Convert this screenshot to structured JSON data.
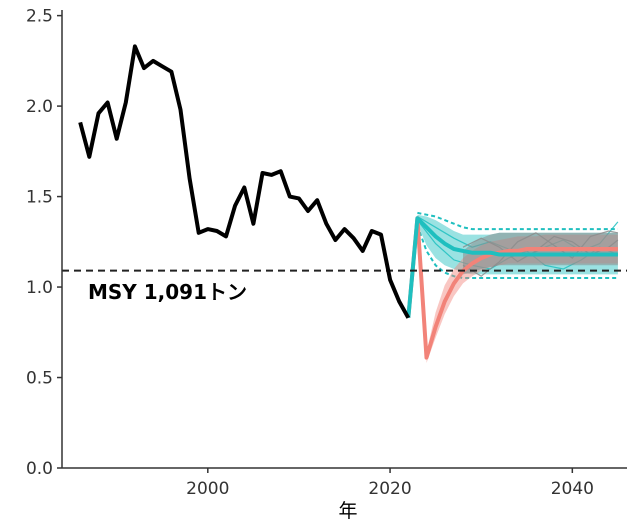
{
  "chart_data": {
    "type": "line",
    "xlabel": "年",
    "ylabel": "",
    "xlim": [
      1984,
      2046
    ],
    "ylim": [
      0,
      2.52
    ],
    "xticks": [
      2000,
      2020,
      2040
    ],
    "yticks": [
      0.0,
      0.5,
      1.0,
      1.5,
      2.0,
      2.5
    ],
    "ytick_labels": [
      "0.0",
      "0.5",
      "1.0",
      "1.5",
      "2.0",
      "2.5"
    ],
    "grid": false,
    "colors": {
      "history": "#000000",
      "teal": "#1fbfbf",
      "teal_band": "#1fbfbf",
      "salmon": "#f28379",
      "grey": "#8c8c8c",
      "msy_line": "#222222"
    },
    "reference_line": {
      "y": 1.091,
      "label": "MSY 1,091トン",
      "style": "dashed"
    },
    "history": {
      "x": [
        1986,
        1987,
        1988,
        1989,
        1990,
        1991,
        1992,
        1993,
        1994,
        1995,
        1996,
        1997,
        1998,
        1999,
        2000,
        2001,
        2002,
        2003,
        2004,
        2005,
        2006,
        2007,
        2008,
        2009,
        2010,
        2011,
        2012,
        2013,
        2014,
        2015,
        2016,
        2017,
        2018,
        2019,
        2020,
        2021,
        2022
      ],
      "y": [
        1.91,
        1.72,
        1.96,
        2.02,
        1.82,
        2.02,
        2.33,
        2.21,
        2.25,
        2.22,
        2.19,
        1.98,
        1.6,
        1.3,
        1.32,
        1.31,
        1.28,
        1.45,
        1.55,
        1.35,
        1.63,
        1.62,
        1.64,
        1.5,
        1.49,
        1.42,
        1.48,
        1.35,
        1.26,
        1.32,
        1.27,
        1.2,
        1.31,
        1.29,
        1.04,
        0.92,
        0.83
      ]
    },
    "projections": [
      {
        "color": "teal",
        "median": {
          "x": [
            2022,
            2023,
            2024,
            2025,
            2026,
            2027,
            2028,
            2029,
            2030,
            2031,
            2032,
            2033,
            2034,
            2035,
            2036,
            2037,
            2038,
            2039,
            2040,
            2041,
            2042,
            2043,
            2044,
            2045
          ],
          "y": [
            0.83,
            1.38,
            1.33,
            1.28,
            1.24,
            1.21,
            1.2,
            1.19,
            1.19,
            1.19,
            1.18,
            1.18,
            1.18,
            1.18,
            1.18,
            1.18,
            1.18,
            1.18,
            1.18,
            1.18,
            1.18,
            1.18,
            1.18,
            1.18
          ]
        },
        "band": {
          "x": [
            2023,
            2024,
            2025,
            2026,
            2027,
            2028,
            2029,
            2030,
            2031,
            2032,
            2033,
            2034,
            2035,
            2036,
            2037,
            2038,
            2039,
            2040,
            2041,
            2042,
            2043,
            2044,
            2045
          ],
          "lower": [
            1.35,
            1.23,
            1.16,
            1.12,
            1.1,
            1.08,
            1.07,
            1.07,
            1.07,
            1.07,
            1.07,
            1.07,
            1.07,
            1.07,
            1.07,
            1.07,
            1.07,
            1.07,
            1.07,
            1.07,
            1.07,
            1.07,
            1.07
          ],
          "upper": [
            1.4,
            1.39,
            1.37,
            1.34,
            1.31,
            1.29,
            1.29,
            1.29,
            1.29,
            1.3,
            1.3,
            1.3,
            1.3,
            1.3,
            1.3,
            1.3,
            1.3,
            1.3,
            1.3,
            1.3,
            1.3,
            1.3,
            1.3
          ],
          "outer_lower": [
            1.34,
            1.2,
            1.12,
            1.08,
            1.06,
            1.05,
            1.05,
            1.05,
            1.05,
            1.05,
            1.05,
            1.05,
            1.05,
            1.05,
            1.05,
            1.05,
            1.05,
            1.05,
            1.05,
            1.05,
            1.05,
            1.05,
            1.05
          ],
          "outer_upper": [
            1.41,
            1.4,
            1.39,
            1.37,
            1.35,
            1.33,
            1.32,
            1.32,
            1.32,
            1.32,
            1.32,
            1.32,
            1.32,
            1.32,
            1.32,
            1.32,
            1.32,
            1.32,
            1.32,
            1.32,
            1.32,
            1.32,
            1.32
          ]
        },
        "traces": [
          {
            "x": [
              2023,
              2025,
              2027,
              2029,
              2031,
              2033,
              2035,
              2037,
              2039,
              2041,
              2043,
              2045
            ],
            "y": [
              1.39,
              1.33,
              1.27,
              1.22,
              1.25,
              1.21,
              1.17,
              1.22,
              1.26,
              1.2,
              1.24,
              1.36
            ]
          },
          {
            "x": [
              2023,
              2025,
              2027,
              2029,
              2031,
              2033,
              2035,
              2037,
              2039,
              2041,
              2043,
              2045
            ],
            "y": [
              1.37,
              1.24,
              1.15,
              1.12,
              1.1,
              1.16,
              1.2,
              1.12,
              1.1,
              1.15,
              1.22,
              1.18
            ]
          }
        ]
      },
      {
        "color": "salmon",
        "median": {
          "x": [
            2022,
            2023,
            2024,
            2025,
            2026,
            2027,
            2028,
            2029,
            2030,
            2031,
            2032,
            2033,
            2034,
            2035,
            2036,
            2037,
            2038,
            2039,
            2040,
            2041,
            2042,
            2043,
            2044,
            2045
          ],
          "y": [
            0.83,
            1.38,
            0.61,
            0.78,
            0.92,
            1.02,
            1.09,
            1.13,
            1.16,
            1.18,
            1.19,
            1.2,
            1.2,
            1.21,
            1.21,
            1.21,
            1.21,
            1.21,
            1.21,
            1.21,
            1.21,
            1.21,
            1.21,
            1.21
          ]
        },
        "band": {
          "x": [
            2024,
            2025,
            2026,
            2027,
            2028,
            2029,
            2030,
            2031,
            2032,
            2033,
            2034,
            2035,
            2036,
            2037,
            2038,
            2039,
            2040,
            2041,
            2042,
            2043,
            2044,
            2045
          ],
          "lower": [
            0.58,
            0.72,
            0.85,
            0.95,
            1.02,
            1.06,
            1.09,
            1.11,
            1.12,
            1.13,
            1.13,
            1.13,
            1.13,
            1.13,
            1.13,
            1.13,
            1.13,
            1.13,
            1.13,
            1.13,
            1.13,
            1.13
          ],
          "upper": [
            0.64,
            0.86,
            1.01,
            1.1,
            1.16,
            1.2,
            1.23,
            1.25,
            1.26,
            1.27,
            1.28,
            1.28,
            1.28,
            1.29,
            1.29,
            1.29,
            1.29,
            1.29,
            1.29,
            1.29,
            1.29,
            1.29
          ]
        }
      },
      {
        "color": "grey",
        "band": {
          "x": [
            2028,
            2029,
            2030,
            2031,
            2032,
            2033,
            2034,
            2035,
            2036,
            2037,
            2038,
            2039,
            2040,
            2041,
            2042,
            2043,
            2044,
            2045
          ],
          "lower": [
            1.07,
            1.08,
            1.1,
            1.11,
            1.12,
            1.12,
            1.12,
            1.12,
            1.12,
            1.12,
            1.12,
            1.12,
            1.12,
            1.12,
            1.12,
            1.12,
            1.12,
            1.12
          ],
          "upper": [
            1.2,
            1.24,
            1.27,
            1.29,
            1.3,
            1.3,
            1.3,
            1.3,
            1.3,
            1.3,
            1.3,
            1.3,
            1.3,
            1.3,
            1.3,
            1.3,
            1.3,
            1.3
          ]
        },
        "traces": [
          {
            "x": [
              2028,
              2030,
              2032,
              2034,
              2036,
              2038,
              2040,
              2042,
              2044,
              2045
            ],
            "y": [
              1.12,
              1.06,
              1.14,
              1.25,
              1.3,
              1.23,
              1.16,
              1.28,
              1.31,
              1.3
            ]
          },
          {
            "x": [
              2028,
              2030,
              2032,
              2034,
              2036,
              2038,
              2040,
              2042,
              2044,
              2045
            ],
            "y": [
              1.22,
              1.27,
              1.22,
              1.14,
              1.2,
              1.28,
              1.25,
              1.18,
              1.22,
              1.26
            ]
          }
        ]
      }
    ]
  }
}
